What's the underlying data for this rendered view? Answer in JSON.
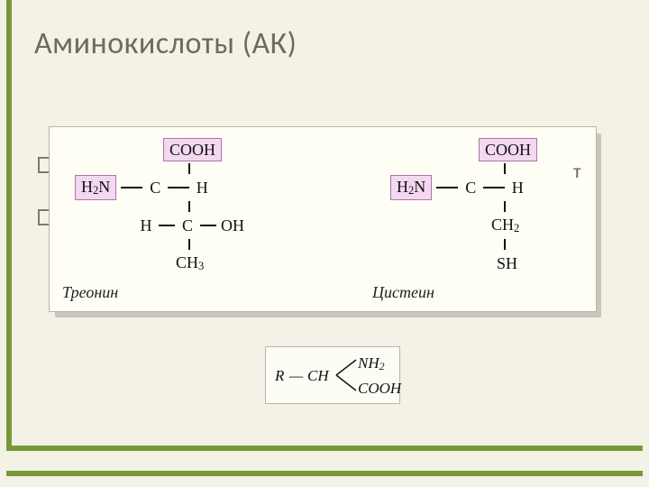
{
  "colors": {
    "background": "#f4f2e6",
    "accent": "#7a9936",
    "title_text": "#6f6a5e",
    "panel_bg": "#fffef5",
    "panel_border": "#b7b5a9",
    "shadow": "#c9c7bd",
    "box_fill": "#f4d8f0",
    "box_border": "#b36fb0",
    "bond": "#111111",
    "bullet_border": "#7e7a6d",
    "stray_text": "#6d685c"
  },
  "title": "Аминокислоты (АК)",
  "stray_char": "т",
  "panel": {
    "left": {
      "name": "Треонин",
      "cooh": "COOH",
      "h2n": "H₂N",
      "rows": {
        "r1": {
          "c": "C",
          "right": "H"
        },
        "r2": {
          "left": "H",
          "c": "C",
          "right": "OH"
        },
        "r3": {
          "c": "CH₃"
        }
      }
    },
    "right": {
      "name": "Цистеин",
      "cooh": "COOH",
      "h2n": "H₂N",
      "rows": {
        "r1": {
          "c": "C",
          "right": "H"
        },
        "r2": {
          "c": "CH₂"
        },
        "r3": {
          "c": "SH"
        }
      }
    }
  },
  "inset": {
    "r": "R",
    "dash": "—",
    "ch": "CH",
    "nh2": "NH₂",
    "cooh": "COOH"
  }
}
